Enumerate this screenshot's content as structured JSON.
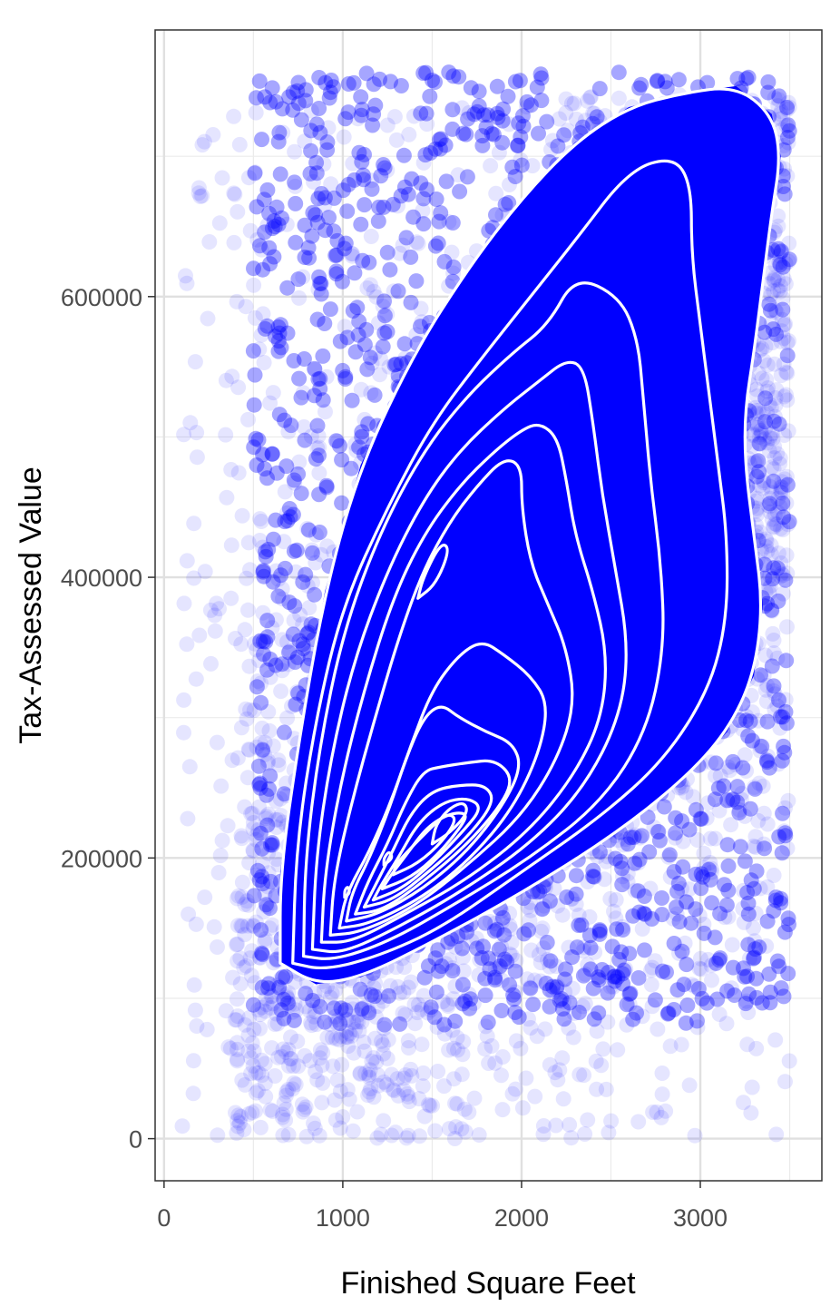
{
  "chart_data": {
    "type": "scatter",
    "title": "",
    "xlabel": "Finished Square Feet",
    "ylabel": "Tax-Assessed Value",
    "xlim": [
      -50,
      3680
    ],
    "ylim": [
      -30000,
      790000
    ],
    "x_ticks": [
      0,
      1000,
      2000,
      3000
    ],
    "y_ticks": [
      0,
      200000,
      400000,
      600000
    ],
    "x_tick_labels": [
      "0",
      "1000",
      "2000",
      "3000"
    ],
    "y_tick_labels": [
      "0",
      "200000",
      "400000",
      "600000"
    ],
    "grid": true,
    "legend": "none",
    "point_color": "#0000ff",
    "point_alpha": 0.1,
    "contour_color": "#ffffff",
    "density_contours": [
      {
        "level": 1,
        "points": [
          [
            650,
            125000
          ],
          [
            850,
            110000
          ],
          [
            1100,
            115000
          ],
          [
            1500,
            140000
          ],
          [
            2000,
            175000
          ],
          [
            2500,
            215000
          ],
          [
            2900,
            255000
          ],
          [
            3150,
            290000
          ],
          [
            3300,
            330000
          ],
          [
            3350,
            380000
          ],
          [
            3300,
            430000
          ],
          [
            3250,
            480000
          ],
          [
            3250,
            520000
          ],
          [
            3300,
            560000
          ],
          [
            3350,
            610000
          ],
          [
            3400,
            660000
          ],
          [
            3450,
            700000
          ],
          [
            3400,
            730000
          ],
          [
            3200,
            750000
          ],
          [
            2900,
            745000
          ],
          [
            2600,
            735000
          ],
          [
            2300,
            710000
          ],
          [
            2000,
            670000
          ],
          [
            1700,
            620000
          ],
          [
            1400,
            560000
          ],
          [
            1100,
            480000
          ],
          [
            900,
            390000
          ],
          [
            750,
            280000
          ],
          [
            650,
            190000
          ],
          [
            650,
            125000
          ]
        ]
      },
      {
        "level": 2,
        "points": [
          [
            720,
            125000
          ],
          [
            900,
            120000
          ],
          [
            1200,
            130000
          ],
          [
            1550,
            150000
          ],
          [
            2000,
            190000
          ],
          [
            2450,
            230000
          ],
          [
            2800,
            270000
          ],
          [
            3050,
            320000
          ],
          [
            3150,
            370000
          ],
          [
            3150,
            430000
          ],
          [
            3100,
            480000
          ],
          [
            3050,
            530000
          ],
          [
            3000,
            580000
          ],
          [
            2950,
            630000
          ],
          [
            2950,
            680000
          ],
          [
            2850,
            700000
          ],
          [
            2600,
            690000
          ],
          [
            2300,
            640000
          ],
          [
            2050,
            600000
          ],
          [
            1800,
            560000
          ],
          [
            1500,
            510000
          ],
          [
            1250,
            450000
          ],
          [
            1000,
            380000
          ],
          [
            850,
            300000
          ],
          [
            740,
            210000
          ],
          [
            720,
            125000
          ]
        ]
      },
      {
        "level": 3,
        "points": [
          [
            780,
            130000
          ],
          [
            950,
            127000
          ],
          [
            1250,
            140000
          ],
          [
            1600,
            165000
          ],
          [
            2050,
            200000
          ],
          [
            2450,
            240000
          ],
          [
            2700,
            290000
          ],
          [
            2800,
            350000
          ],
          [
            2780,
            410000
          ],
          [
            2720,
            470000
          ],
          [
            2680,
            530000
          ],
          [
            2650,
            570000
          ],
          [
            2550,
            600000
          ],
          [
            2300,
            615000
          ],
          [
            2150,
            580000
          ],
          [
            1950,
            560000
          ],
          [
            1700,
            530000
          ],
          [
            1450,
            490000
          ],
          [
            1200,
            430000
          ],
          [
            1000,
            360000
          ],
          [
            870,
            280000
          ],
          [
            790,
            200000
          ],
          [
            780,
            130000
          ]
        ]
      },
      {
        "level": 4,
        "points": [
          [
            830,
            135000
          ],
          [
            1000,
            132000
          ],
          [
            1300,
            150000
          ],
          [
            1650,
            175000
          ],
          [
            2050,
            210000
          ],
          [
            2350,
            250000
          ],
          [
            2550,
            300000
          ],
          [
            2600,
            350000
          ],
          [
            2520,
            410000
          ],
          [
            2450,
            460000
          ],
          [
            2400,
            510000
          ],
          [
            2350,
            550000
          ],
          [
            2250,
            555000
          ],
          [
            2100,
            540000
          ],
          [
            1900,
            520000
          ],
          [
            1650,
            490000
          ],
          [
            1450,
            455000
          ],
          [
            1250,
            405000
          ],
          [
            1060,
            340000
          ],
          [
            930,
            270000
          ],
          [
            850,
            200000
          ],
          [
            830,
            135000
          ]
        ]
      },
      {
        "level": 5,
        "points": [
          [
            880,
            140000
          ],
          [
            1050,
            140000
          ],
          [
            1350,
            160000
          ],
          [
            1700,
            185000
          ],
          [
            2050,
            220000
          ],
          [
            2300,
            260000
          ],
          [
            2450,
            300000
          ],
          [
            2480,
            345000
          ],
          [
            2400,
            390000
          ],
          [
            2300,
            430000
          ],
          [
            2250,
            470000
          ],
          [
            2200,
            500000
          ],
          [
            2100,
            510000
          ],
          [
            2000,
            505000
          ],
          [
            1850,
            490000
          ],
          [
            1650,
            465000
          ],
          [
            1450,
            430000
          ],
          [
            1280,
            385000
          ],
          [
            1120,
            320000
          ],
          [
            990,
            255000
          ],
          [
            900,
            190000
          ],
          [
            880,
            140000
          ]
        ]
      },
      {
        "level": 6,
        "points": [
          [
            930,
            145000
          ],
          [
            1100,
            147000
          ],
          [
            1400,
            165000
          ],
          [
            1700,
            195000
          ],
          [
            2000,
            230000
          ],
          [
            2200,
            270000
          ],
          [
            2300,
            310000
          ],
          [
            2250,
            350000
          ],
          [
            2150,
            380000
          ],
          [
            2050,
            410000
          ],
          [
            2000,
            450000
          ],
          [
            2000,
            480000
          ],
          [
            1900,
            485000
          ],
          [
            1750,
            465000
          ],
          [
            1600,
            440000
          ],
          [
            1450,
            405000
          ],
          [
            1320,
            360000
          ],
          [
            1180,
            300000
          ],
          [
            1050,
            240000
          ],
          [
            950,
            185000
          ],
          [
            930,
            145000
          ]
        ]
      },
      {
        "level": 7,
        "points": [
          [
            980,
            150000
          ],
          [
            1150,
            153000
          ],
          [
            1450,
            172000
          ],
          [
            1720,
            200000
          ],
          [
            1950,
            235000
          ],
          [
            2100,
            275000
          ],
          [
            2150,
            310000
          ],
          [
            2050,
            330000
          ],
          [
            1900,
            345000
          ],
          [
            1780,
            355000
          ],
          [
            1650,
            345000
          ],
          [
            1500,
            320000
          ],
          [
            1380,
            280000
          ],
          [
            1270,
            240000
          ],
          [
            1150,
            205000
          ],
          [
            1020,
            175000
          ],
          [
            980,
            150000
          ]
        ]
      },
      {
        "level": 8,
        "points": [
          [
            1020,
            155000
          ],
          [
            1200,
            160000
          ],
          [
            1450,
            178000
          ],
          [
            1700,
            205000
          ],
          [
            1900,
            238000
          ],
          [
            2000,
            265000
          ],
          [
            1950,
            282000
          ],
          [
            1800,
            290000
          ],
          [
            1650,
            300000
          ],
          [
            1550,
            310000
          ],
          [
            1450,
            300000
          ],
          [
            1350,
            270000
          ],
          [
            1260,
            235000
          ],
          [
            1150,
            200000
          ],
          [
            1050,
            175000
          ],
          [
            1020,
            155000
          ]
        ]
      },
      {
        "level": 9,
        "points": [
          [
            1070,
            160000
          ],
          [
            1230,
            163000
          ],
          [
            1450,
            183000
          ],
          [
            1700,
            210000
          ],
          [
            1900,
            240000
          ],
          [
            1950,
            258000
          ],
          [
            1850,
            270000
          ],
          [
            1700,
            268000
          ],
          [
            1550,
            265000
          ],
          [
            1450,
            262000
          ],
          [
            1350,
            240000
          ],
          [
            1250,
            210000
          ],
          [
            1140,
            183000
          ],
          [
            1070,
            160000
          ]
        ]
      },
      {
        "level": 10,
        "points": [
          [
            1120,
            165000
          ],
          [
            1280,
            170000
          ],
          [
            1480,
            190000
          ],
          [
            1700,
            215000
          ],
          [
            1850,
            240000
          ],
          [
            1800,
            252000
          ],
          [
            1650,
            252000
          ],
          [
            1500,
            248000
          ],
          [
            1380,
            232000
          ],
          [
            1280,
            205000
          ],
          [
            1180,
            180000
          ],
          [
            1120,
            165000
          ]
        ]
      },
      {
        "level": 11,
        "points": [
          [
            1170,
            170000
          ],
          [
            1330,
            178000
          ],
          [
            1500,
            196000
          ],
          [
            1680,
            220000
          ],
          [
            1780,
            236000
          ],
          [
            1700,
            243000
          ],
          [
            1560,
            240000
          ],
          [
            1420,
            225000
          ],
          [
            1310,
            200000
          ],
          [
            1220,
            182000
          ],
          [
            1170,
            170000
          ]
        ]
      },
      {
        "level": 12,
        "points": [
          [
            1220,
            178000
          ],
          [
            1380,
            186000
          ],
          [
            1530,
            202000
          ],
          [
            1660,
            222000
          ],
          [
            1700,
            232000
          ],
          [
            1600,
            232000
          ],
          [
            1470,
            222000
          ],
          [
            1360,
            203000
          ],
          [
            1270,
            188000
          ],
          [
            1220,
            178000
          ]
        ]
      },
      {
        "level": 13,
        "points": [
          [
            1280,
            188000
          ],
          [
            1420,
            196000
          ],
          [
            1560,
            212000
          ],
          [
            1640,
            228000
          ],
          [
            1580,
            232000
          ],
          [
            1480,
            220000
          ],
          [
            1380,
            207000
          ],
          [
            1300,
            196000
          ],
          [
            1280,
            188000
          ]
        ]
      },
      {
        "level": 14,
        "points": [
          [
            1500,
            210000
          ],
          [
            1600,
            218000
          ],
          [
            1700,
            232000
          ],
          [
            1680,
            240000
          ],
          [
            1600,
            236000
          ],
          [
            1520,
            224000
          ],
          [
            1500,
            210000
          ]
        ]
      },
      {
        "level": 15,
        "points": [
          [
            1420,
            385000
          ],
          [
            1520,
            395000
          ],
          [
            1600,
            420000
          ],
          [
            1550,
            425000
          ],
          [
            1450,
            400000
          ],
          [
            1420,
            385000
          ]
        ]
      },
      {
        "level": 16,
        "points": [
          [
            1230,
            195000
          ],
          [
            1280,
            200000
          ],
          [
            1260,
            205000
          ],
          [
            1230,
            200000
          ],
          [
            1230,
            195000
          ]
        ]
      },
      {
        "level": 17,
        "points": [
          [
            1010,
            172000
          ],
          [
            1040,
            175000
          ],
          [
            1030,
            180000
          ],
          [
            1010,
            177000
          ],
          [
            1010,
            172000
          ]
        ]
      }
    ]
  }
}
